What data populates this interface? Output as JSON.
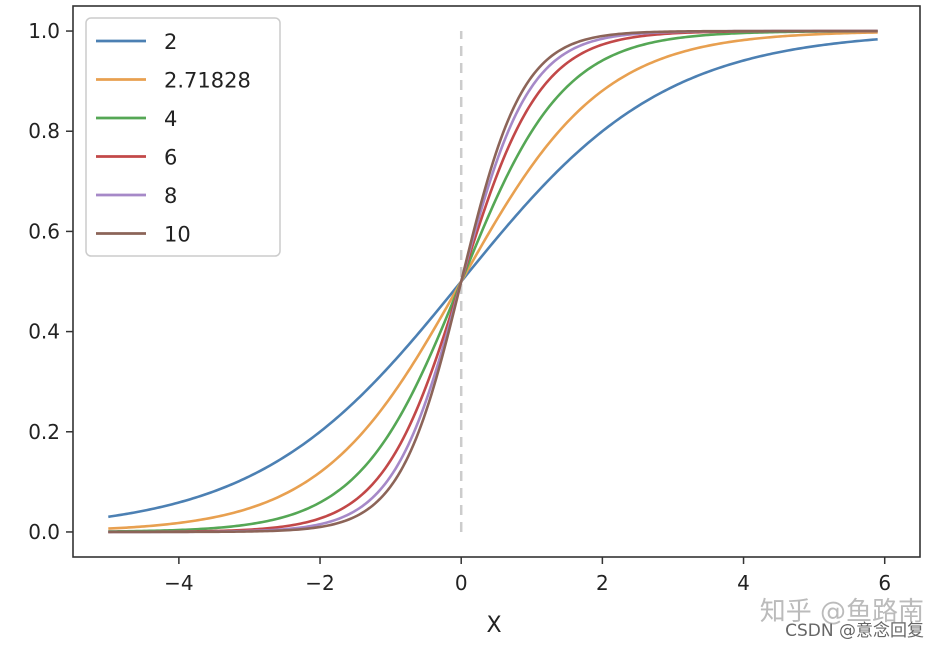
{
  "chart_data": {
    "type": "line",
    "title": "",
    "xlabel": "X",
    "ylabel": "",
    "xlim": [
      -5.5,
      6.5
    ],
    "ylim": [
      -0.05,
      1.05
    ],
    "x_ticks": [
      -4,
      -2,
      0,
      2,
      4,
      6
    ],
    "x_tick_labels": [
      "−4",
      "−2",
      "0",
      "2",
      "4",
      "6"
    ],
    "y_ticks": [
      0.0,
      0.2,
      0.4,
      0.6,
      0.8,
      1.0
    ],
    "y_tick_labels": [
      "0.0",
      "0.2",
      "0.4",
      "0.6",
      "0.8",
      "1.0"
    ],
    "grid": false,
    "legend_position": "top-left",
    "x_range": [
      -5,
      5.9
    ],
    "reference_line": {
      "x": 0,
      "y_from": 0,
      "y_to": 1,
      "style": "dashed",
      "color": "#cccccc"
    },
    "series": [
      {
        "name": "2",
        "base": 2,
        "color": "#4c80b3"
      },
      {
        "name": "2.71828",
        "base": 2.71828,
        "color": "#e8a050"
      },
      {
        "name": "4",
        "base": 4,
        "color": "#55a755"
      },
      {
        "name": "6",
        "base": 6,
        "color": "#c24848"
      },
      {
        "name": "8",
        "base": 8,
        "color": "#a689c8"
      },
      {
        "name": "10",
        "base": 10,
        "color": "#8c6458"
      }
    ]
  },
  "watermark": {
    "main": "知乎 @鱼路南",
    "sub": "CSDN @意念回复"
  }
}
